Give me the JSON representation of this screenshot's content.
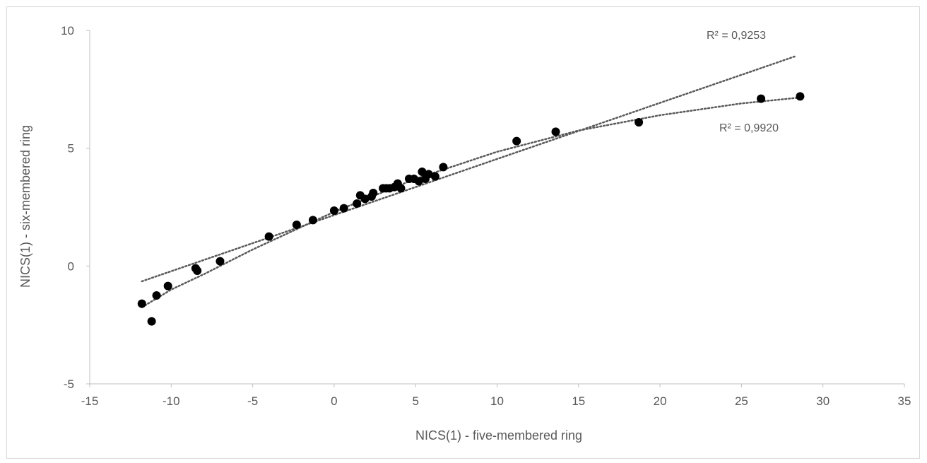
{
  "chart_data": {
    "type": "scatter",
    "title": "",
    "xlabel": "NICS(1) - five-membered ring",
    "ylabel": "NICS(1) - six-membered ring",
    "xlim": [
      -15,
      35
    ],
    "ylim": [
      -5,
      10
    ],
    "xticks": [
      -15,
      -10,
      -5,
      0,
      5,
      10,
      15,
      20,
      25,
      30,
      35
    ],
    "yticks": [
      -5,
      0,
      5,
      10
    ],
    "grid": false,
    "legend": "none",
    "marker_color": "#000000",
    "trendline_color": "#595959",
    "series": [
      {
        "points": [
          [
            -11.8,
            -1.6
          ],
          [
            -11.2,
            -2.35
          ],
          [
            -10.9,
            -1.25
          ],
          [
            -10.2,
            -0.85
          ],
          [
            -8.5,
            -0.1
          ],
          [
            -8.4,
            -0.2
          ],
          [
            -7.0,
            0.2
          ],
          [
            -4.0,
            1.25
          ],
          [
            -2.3,
            1.75
          ],
          [
            -1.3,
            1.95
          ],
          [
            0.0,
            2.35
          ],
          [
            0.6,
            2.45
          ],
          [
            1.4,
            2.65
          ],
          [
            1.6,
            3.0
          ],
          [
            1.9,
            2.85
          ],
          [
            2.3,
            2.95
          ],
          [
            2.4,
            3.1
          ],
          [
            3.0,
            3.3
          ],
          [
            3.2,
            3.3
          ],
          [
            3.4,
            3.3
          ],
          [
            3.7,
            3.35
          ],
          [
            3.9,
            3.5
          ],
          [
            4.1,
            3.3
          ],
          [
            4.6,
            3.7
          ],
          [
            4.9,
            3.7
          ],
          [
            5.2,
            3.6
          ],
          [
            5.4,
            4.0
          ],
          [
            5.6,
            3.7
          ],
          [
            5.8,
            3.9
          ],
          [
            6.2,
            3.8
          ],
          [
            6.7,
            4.2
          ],
          [
            11.2,
            5.3
          ],
          [
            13.6,
            5.7
          ],
          [
            18.7,
            6.1
          ],
          [
            26.2,
            7.1
          ],
          [
            28.6,
            7.2
          ]
        ]
      }
    ],
    "trendlines": [
      {
        "kind": "linear",
        "r2_label": "R² = 0,9253",
        "from": [
          -11.8,
          -0.65
        ],
        "to": [
          28.3,
          8.9
        ],
        "label_position": "top-right"
      },
      {
        "kind": "polynomial",
        "r2_label": "R² = 0,9920",
        "points": [
          [
            -11.8,
            -1.75
          ],
          [
            -10,
            -1.0
          ],
          [
            -8,
            -0.35
          ],
          [
            -5,
            0.7
          ],
          [
            0,
            2.3
          ],
          [
            5,
            3.7
          ],
          [
            10,
            4.85
          ],
          [
            15,
            5.75
          ],
          [
            20,
            6.4
          ],
          [
            25,
            6.9
          ],
          [
            28.6,
            7.15
          ]
        ],
        "label_position": "right"
      }
    ]
  }
}
